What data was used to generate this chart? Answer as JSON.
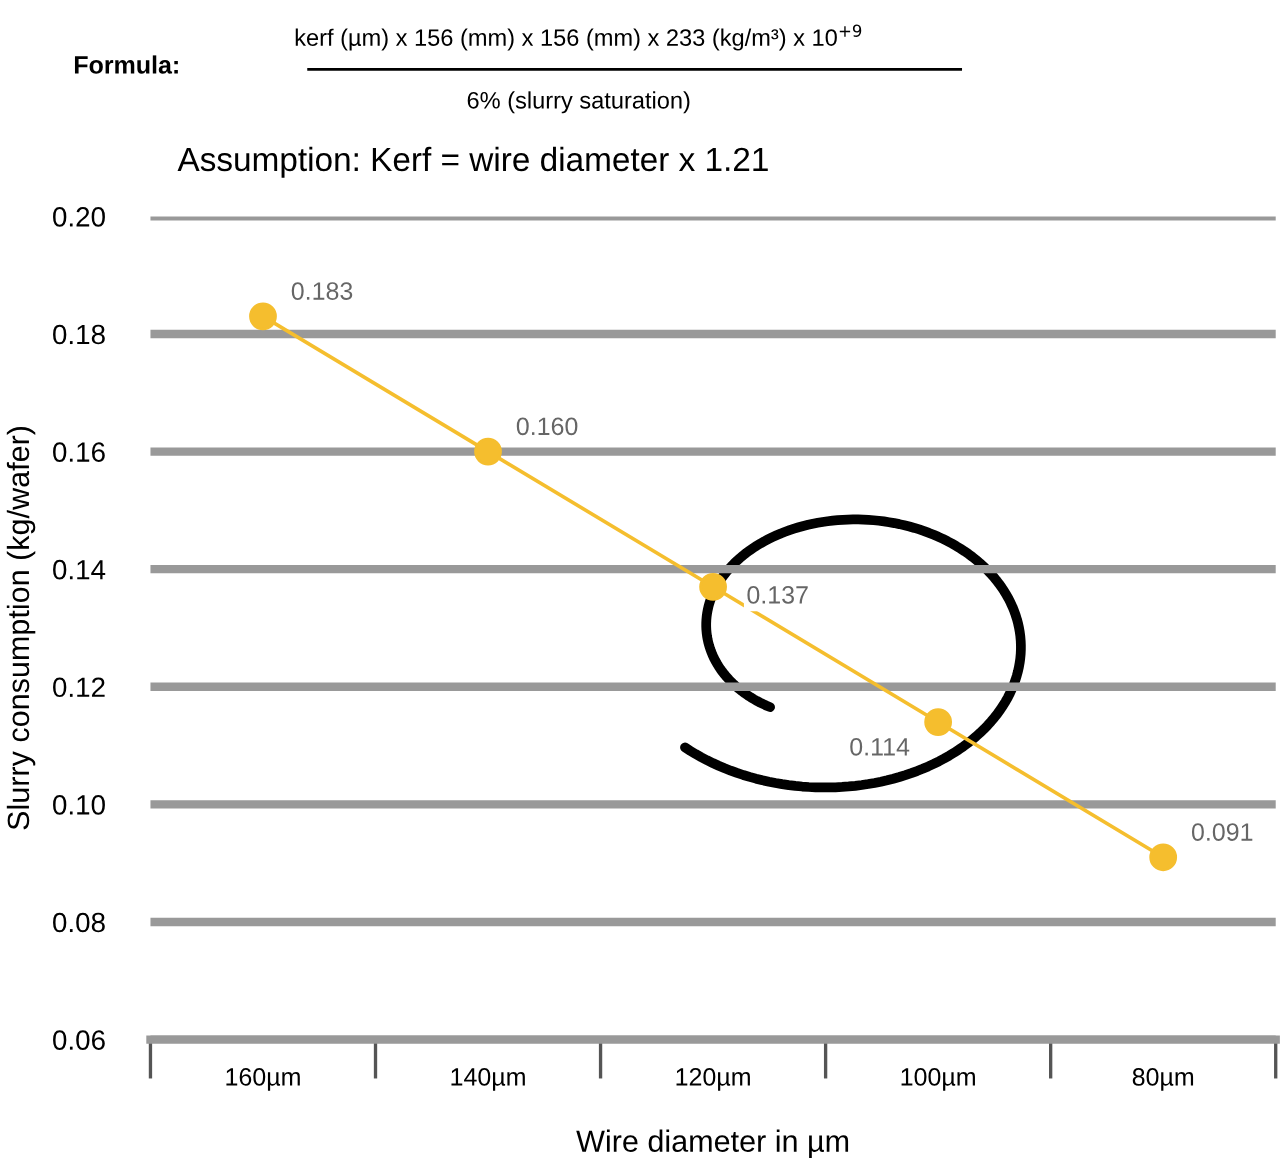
{
  "chart_data": {
    "type": "line",
    "categories": [
      "160µm",
      "140µm",
      "120µm",
      "100µm",
      "80µm"
    ],
    "series": [
      {
        "color": "#f5be2e",
        "values": [
          0.183,
          0.16,
          0.137,
          0.114,
          0.091
        ],
        "value_labels": [
          "0.183",
          "0.160",
          "0.137",
          "0.114",
          "0.091"
        ]
      }
    ],
    "ylim": [
      0.06,
      0.2
    ],
    "yticks": [
      "0.06",
      "0.08",
      "0.10",
      "0.12",
      "0.14",
      "0.16",
      "0.18",
      "0.20"
    ],
    "xlabel": "Wire diameter in µm",
    "ylabel": "Slurry consumption (kg/wafer)",
    "annotations": [
      "Formula:",
      "kerf (µm) x 156 (mm) x 156 (mm) x 233 (kg/m³) x 10$^{+9}$",
      "6% (slurry saturation)",
      "Assumption: Kerf = wire diameter x 1.21"
    ],
    "grid": "y",
    "marker": "circle",
    "line_style": "solid",
    "legend": false
  }
}
